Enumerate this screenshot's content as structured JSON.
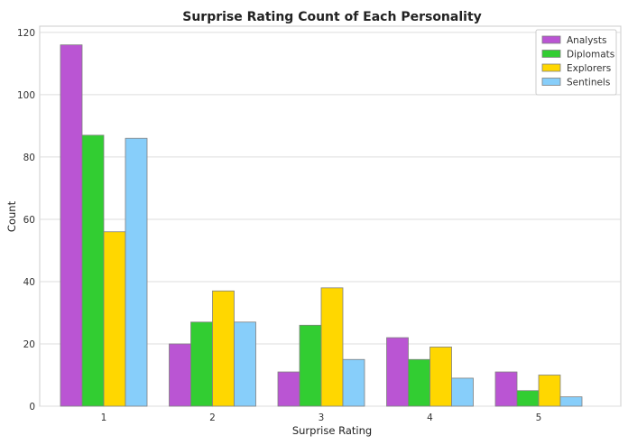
{
  "chart_data": {
    "type": "bar",
    "title": "Surprise Rating Count of Each Personality",
    "xlabel": "Surprise Rating",
    "ylabel": "Count",
    "categories": [
      "1",
      "2",
      "3",
      "4",
      "5"
    ],
    "ylim": [
      0,
      122
    ],
    "yticks": [
      0,
      20,
      40,
      60,
      80,
      100,
      120
    ],
    "grid": true,
    "legend_position": "top-right",
    "series": [
      {
        "name": "Analysts",
        "color": "#BA55D3",
        "values": [
          116,
          20,
          11,
          22,
          11
        ]
      },
      {
        "name": "Diplomats",
        "color": "#32CD32",
        "values": [
          87,
          27,
          26,
          15,
          5
        ]
      },
      {
        "name": "Explorers",
        "color": "#FFD700",
        "values": [
          56,
          37,
          38,
          19,
          10
        ]
      },
      {
        "name": "Sentinels",
        "color": "#87CEFA",
        "values": [
          86,
          27,
          15,
          9,
          3
        ]
      }
    ]
  }
}
